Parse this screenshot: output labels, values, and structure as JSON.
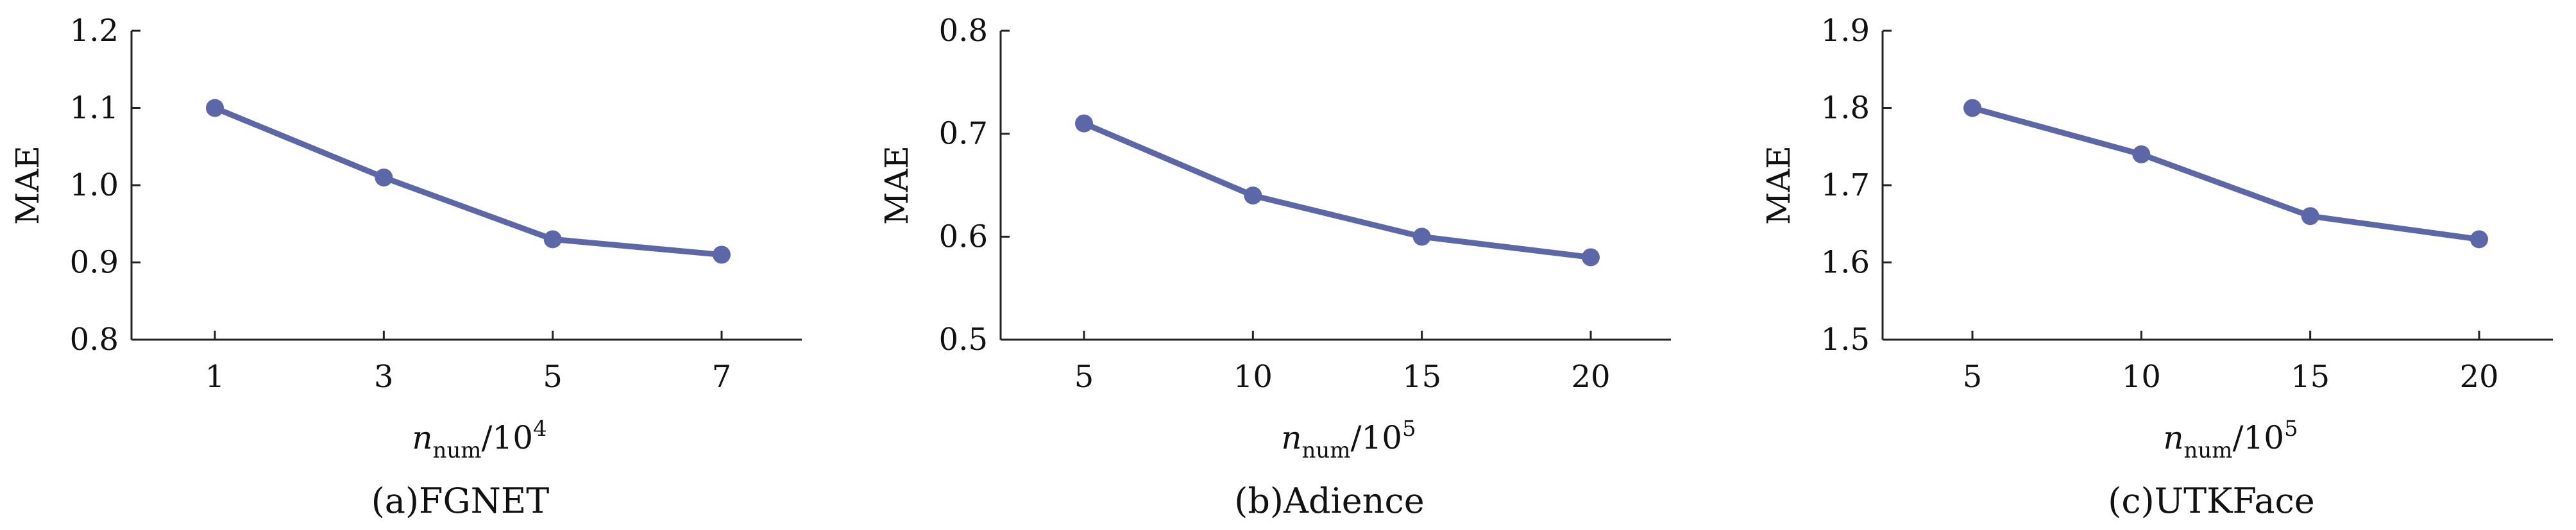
{
  "figure": {
    "line_color": "#5b67a8",
    "axis_color": "#222222"
  },
  "chart_data": [
    {
      "type": "line",
      "caption": "(a)FGNET",
      "ylabel": "MAE",
      "xlabel": {
        "var": "n",
        "sub": "num",
        "suffix": "/10",
        "exp": "4"
      },
      "categories": [
        "1",
        "3",
        "5",
        "7"
      ],
      "series": [
        {
          "values": [
            1.1,
            1.01,
            0.93,
            0.91
          ]
        }
      ],
      "ylim": [
        0.8,
        1.2
      ],
      "yticks": [
        "0.8",
        "0.9",
        "1.0",
        "1.1",
        "1.2"
      ],
      "grid": false
    },
    {
      "type": "line",
      "caption": "(b)Adience",
      "ylabel": "MAE",
      "xlabel": {
        "var": "n",
        "sub": "num",
        "suffix": "/10",
        "exp": "5"
      },
      "categories": [
        "5",
        "10",
        "15",
        "20"
      ],
      "series": [
        {
          "values": [
            0.71,
            0.64,
            0.6,
            0.58
          ]
        }
      ],
      "ylim": [
        0.5,
        0.8
      ],
      "yticks": [
        "0.5",
        "0.6",
        "0.7",
        "0.8"
      ],
      "grid": false
    },
    {
      "type": "line",
      "caption": "(c)UTKFace",
      "ylabel": "MAE",
      "xlabel": {
        "var": "n",
        "sub": "num",
        "suffix": "/10",
        "exp": "5"
      },
      "categories": [
        "5",
        "10",
        "15",
        "20"
      ],
      "series": [
        {
          "values": [
            1.8,
            1.74,
            1.66,
            1.63
          ]
        }
      ],
      "ylim": [
        1.5,
        1.9
      ],
      "yticks": [
        "1.5",
        "1.6",
        "1.7",
        "1.8",
        "1.9"
      ],
      "grid": false
    }
  ]
}
